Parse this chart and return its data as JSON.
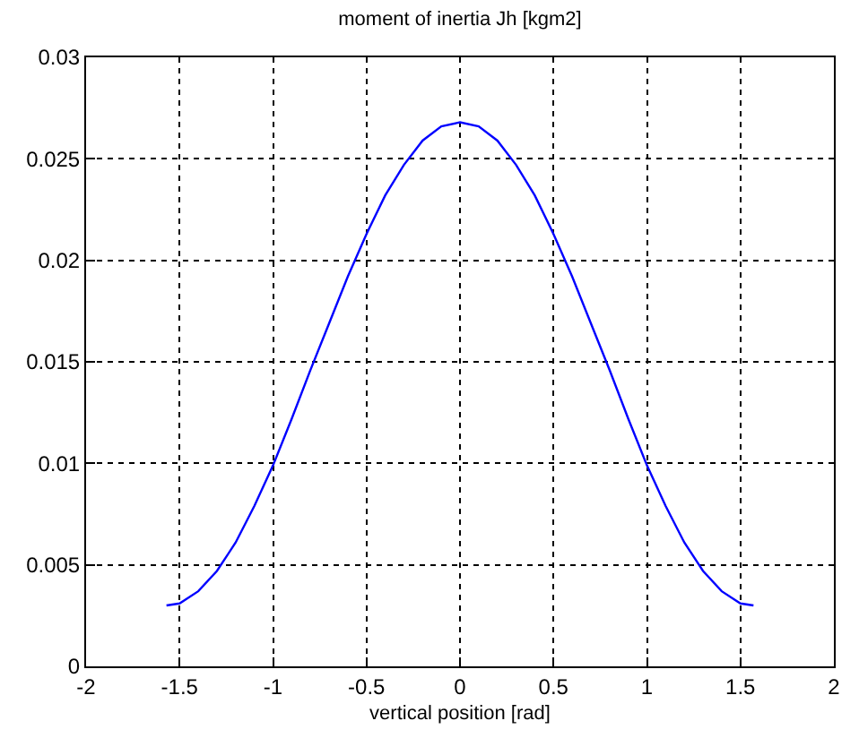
{
  "chart_data": {
    "type": "line",
    "title": "moment of inertia Jh [kgm2]",
    "xlabel": "vertical position [rad]",
    "x": [
      -1.57,
      -1.5,
      -1.4,
      -1.3,
      -1.2,
      -1.1,
      -1.0,
      -0.9,
      -0.8,
      -0.7,
      -0.6,
      -0.5,
      -0.4,
      -0.3,
      -0.2,
      -0.1,
      0,
      0.1,
      0.2,
      0.3,
      0.4,
      0.5,
      0.6,
      0.7,
      0.8,
      0.9,
      1.0,
      1.1,
      1.2,
      1.3,
      1.4,
      1.5,
      1.57
    ],
    "series": [
      {
        "color": "#0000ff",
        "values": [
          0.003,
          0.0031,
          0.0037,
          0.0047,
          0.0061,
          0.0079,
          0.0099,
          0.0122,
          0.0146,
          0.0169,
          0.0192,
          0.0213,
          0.0232,
          0.0247,
          0.0259,
          0.0266,
          0.0268,
          0.0266,
          0.0259,
          0.0247,
          0.0232,
          0.0213,
          0.0192,
          0.0169,
          0.0146,
          0.0122,
          0.0099,
          0.0079,
          0.0061,
          0.0047,
          0.0037,
          0.0031,
          0.003
        ]
      }
    ],
    "xlim": [
      -2,
      2
    ],
    "xticks": [
      -2,
      -1.5,
      -1,
      -0.5,
      0,
      0.5,
      1,
      1.5,
      2
    ],
    "ylim": [
      0,
      0.03
    ],
    "yticks": [
      0,
      0.005,
      0.01,
      0.015,
      0.02,
      0.025,
      0.03
    ],
    "grid": true
  }
}
